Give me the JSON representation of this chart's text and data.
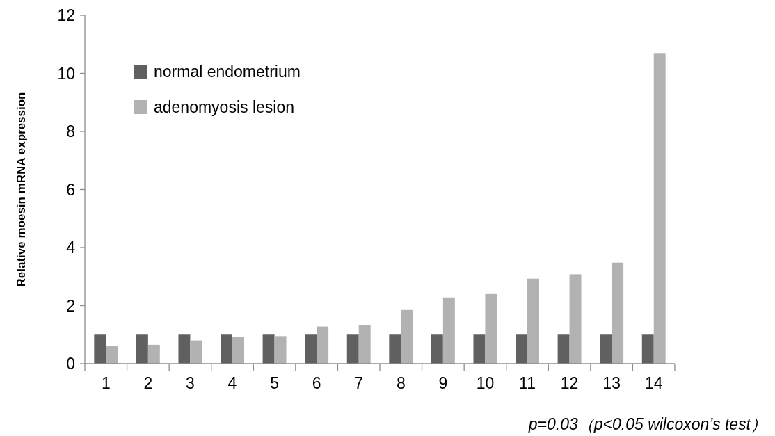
{
  "chart_data": {
    "type": "bar",
    "ylabel": "Relative moesin mRNA expression",
    "categories": [
      "1",
      "2",
      "3",
      "4",
      "5",
      "6",
      "7",
      "8",
      "9",
      "10",
      "11",
      "12",
      "13",
      "14"
    ],
    "series": [
      {
        "name": "normal endometrium",
        "color": "#606060",
        "values": [
          1,
          1,
          1,
          1,
          1,
          1,
          1,
          1,
          1,
          1,
          1,
          1,
          1,
          1
        ]
      },
      {
        "name": "adenomyosis lesion",
        "color": "#b2b2b2",
        "values": [
          0.6,
          0.65,
          0.8,
          0.91,
          0.95,
          1.28,
          1.33,
          1.85,
          2.28,
          2.4,
          2.93,
          3.08,
          3.48,
          10.7
        ]
      }
    ],
    "ylim": [
      0,
      12
    ],
    "yticks": [
      0,
      2,
      4,
      6,
      8,
      10,
      12
    ],
    "grid": false,
    "legend": "top left",
    "annotations": [
      "p=0.03（p<0.05  wilcoxon’s test）"
    ]
  }
}
